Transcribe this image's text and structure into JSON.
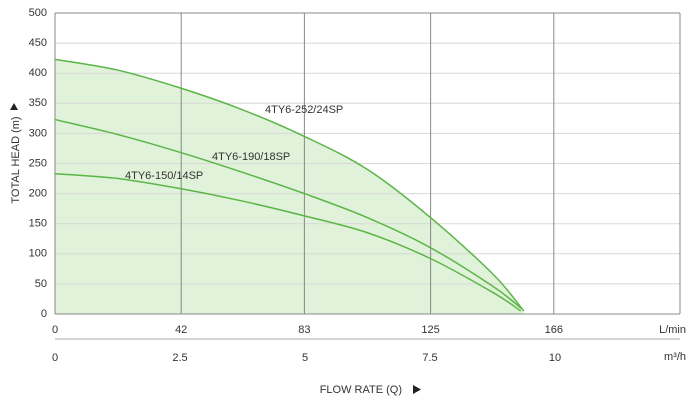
{
  "chart_data": {
    "type": "line",
    "y_label": "TOTAL HEAD (m)",
    "x_label": "FLOW RATE (Q)",
    "x_unit": "L/min",
    "x2_unit": "m³/h",
    "xlim": [
      0,
      208
    ],
    "xticks": [
      0,
      42,
      83,
      125,
      166
    ],
    "x2lim": [
      0,
      12.5
    ],
    "x2ticks": [
      0,
      2.5,
      5,
      7.5,
      10
    ],
    "ylim": [
      0,
      500
    ],
    "yticks": [
      0,
      50,
      100,
      150,
      200,
      250,
      300,
      350,
      400,
      450,
      500
    ],
    "grid": true,
    "fill_color": "#e0f2d9",
    "series": [
      {
        "name": "4TY6-252/24SP",
        "color": "#5bb547",
        "fill": true,
        "x": [
          0,
          21,
          42,
          62,
          83,
          104,
          125,
          146,
          156
        ],
        "values": [
          423,
          405,
          375,
          340,
          295,
          240,
          160,
          65,
          5
        ]
      },
      {
        "name": "4TY6-190/18SP",
        "color": "#5bb547",
        "fill": false,
        "x": [
          0,
          21,
          42,
          62,
          83,
          104,
          125,
          146,
          155.5
        ],
        "values": [
          323,
          298,
          268,
          236,
          200,
          160,
          110,
          45,
          8
        ]
      },
      {
        "name": "4TY6-150/14SP",
        "color": "#5bb547",
        "fill": false,
        "x": [
          0,
          21,
          42,
          62,
          83,
          104,
          125,
          146,
          155
        ],
        "values": [
          233,
          225,
          208,
          188,
          163,
          135,
          92,
          35,
          5
        ]
      }
    ]
  }
}
